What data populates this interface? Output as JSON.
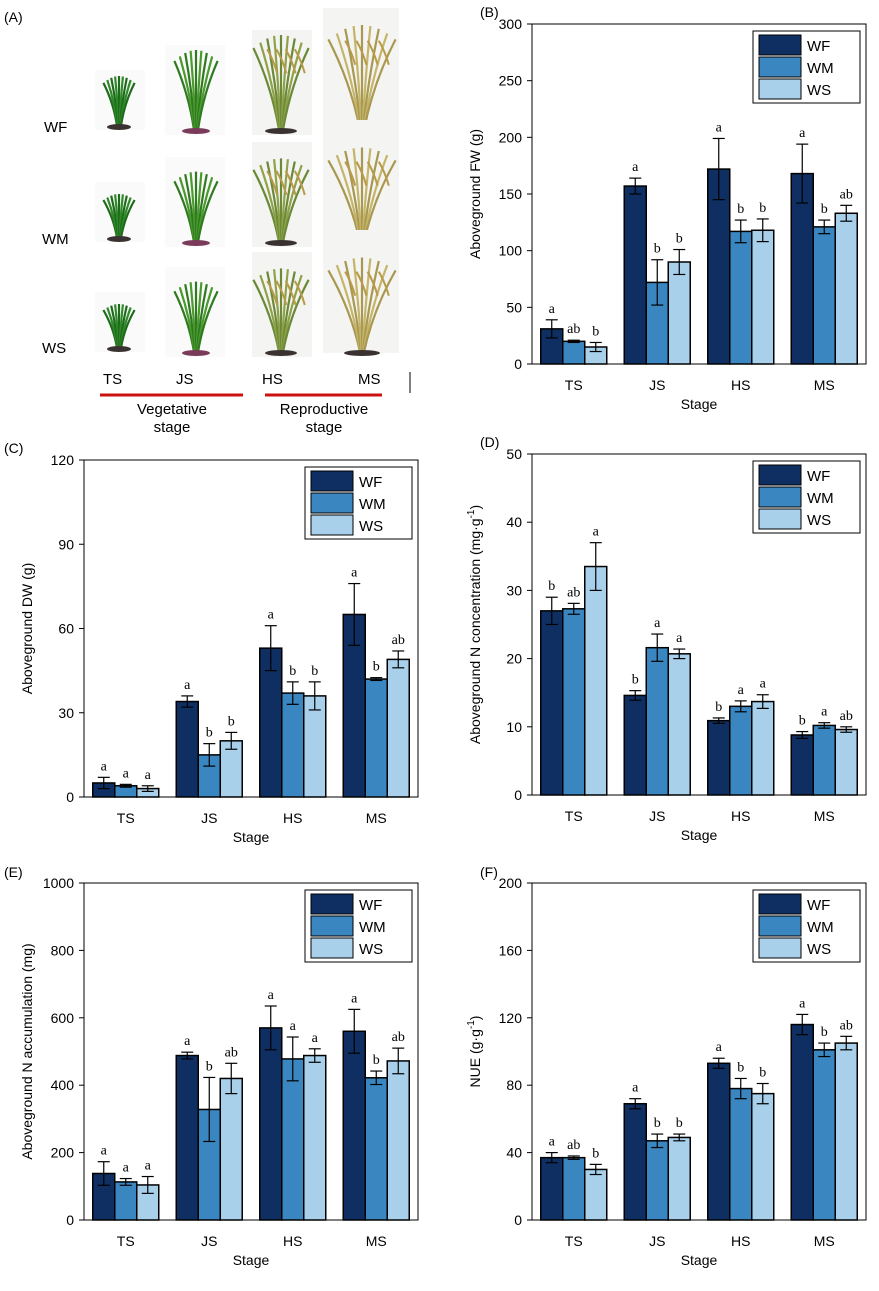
{
  "colors": {
    "WF": "#0f2f63",
    "WM": "#3a86c0",
    "WS": "#a8d0eb",
    "stage_bar": "#cc1111"
  },
  "panel_a": {
    "label": "(A)",
    "rows": [
      "WF",
      "WM",
      "WS"
    ],
    "stages": [
      "TS",
      "JS",
      "HS",
      "MS"
    ],
    "vegetative_label_1": "Vegetative",
    "vegetative_label_2": "stage",
    "reproductive_label_1": "Reproductive",
    "reproductive_label_2": "stage",
    "photo_description": "rice plants at four growth stages"
  },
  "chart_data": [
    {
      "id": "B",
      "label": "(B)",
      "type": "bar",
      "categories": [
        "TS",
        "JS",
        "HS",
        "MS"
      ],
      "series": [
        {
          "name": "WF",
          "values": [
            31,
            157,
            172,
            168
          ],
          "errors": [
            8,
            7,
            27,
            26
          ],
          "sig": [
            "a",
            "a",
            "a",
            "a"
          ]
        },
        {
          "name": "WM",
          "values": [
            20,
            72,
            117,
            121
          ],
          "errors": [
            1,
            20,
            10,
            6
          ],
          "sig": [
            "ab",
            "b",
            "b",
            "b"
          ]
        },
        {
          "name": "WS",
          "values": [
            15,
            90,
            118,
            133
          ],
          "errors": [
            4,
            11,
            10,
            7
          ],
          "sig": [
            "b",
            "b",
            "b",
            "ab"
          ]
        }
      ],
      "xlabel": "Stage",
      "ylabel": "Aboveground FW (g)",
      "ylim": [
        0,
        300
      ],
      "yticks": [
        "0",
        "50",
        "100",
        "150",
        "200",
        "250",
        "300"
      ]
    },
    {
      "id": "C",
      "label": "(C)",
      "type": "bar",
      "categories": [
        "TS",
        "JS",
        "HS",
        "MS"
      ],
      "series": [
        {
          "name": "WF",
          "values": [
            5,
            34,
            53,
            65
          ],
          "errors": [
            2,
            2,
            8,
            11
          ],
          "sig": [
            "a",
            "a",
            "a",
            "a"
          ]
        },
        {
          "name": "WM",
          "values": [
            4,
            15,
            37,
            42
          ],
          "errors": [
            0.5,
            4,
            4,
            0.5
          ],
          "sig": [
            "a",
            "b",
            "b",
            "b"
          ]
        },
        {
          "name": "WS",
          "values": [
            3,
            20,
            36,
            49
          ],
          "errors": [
            1,
            3,
            5,
            3
          ],
          "sig": [
            "a",
            "b",
            "b",
            "ab"
          ]
        }
      ],
      "xlabel": "Stage",
      "ylabel": "Aboveground DW (g)",
      "ylim": [
        0,
        120
      ],
      "yticks": [
        "0",
        "30",
        "60",
        "90",
        "120"
      ]
    },
    {
      "id": "D",
      "label": "(D)",
      "type": "bar",
      "categories": [
        "TS",
        "JS",
        "HS",
        "MS"
      ],
      "series": [
        {
          "name": "WF",
          "values": [
            27,
            14.6,
            10.9,
            8.8
          ],
          "errors": [
            2,
            0.7,
            0.4,
            0.5
          ],
          "sig": [
            "b",
            "b",
            "b",
            "b"
          ]
        },
        {
          "name": "WM",
          "values": [
            27.3,
            21.6,
            13,
            10.2
          ],
          "errors": [
            0.8,
            2,
            0.8,
            0.4
          ],
          "sig": [
            "ab",
            "a",
            "a",
            "a"
          ]
        },
        {
          "name": "WS",
          "values": [
            33.5,
            20.7,
            13.7,
            9.6
          ],
          "errors": [
            3.5,
            0.7,
            1,
            0.4
          ],
          "sig": [
            "a",
            "a",
            "a",
            "ab"
          ]
        }
      ],
      "xlabel": "Stage",
      "ylabel": "Aboveground N concentration (mg·g",
      "ylabel_sup": "-1",
      "ylabel_end": ")",
      "ylim": [
        0,
        50
      ],
      "yticks": [
        "0",
        "10",
        "20",
        "30",
        "40",
        "50"
      ]
    },
    {
      "id": "E",
      "label": "(E)",
      "type": "bar",
      "categories": [
        "TS",
        "JS",
        "HS",
        "MS"
      ],
      "series": [
        {
          "name": "WF",
          "values": [
            138,
            488,
            570,
            560
          ],
          "errors": [
            35,
            10,
            65,
            65
          ],
          "sig": [
            "a",
            "a",
            "a",
            "a"
          ]
        },
        {
          "name": "WM",
          "values": [
            113,
            328,
            478,
            422
          ],
          "errors": [
            10,
            95,
            65,
            20
          ],
          "sig": [
            "a",
            "b",
            "a",
            "b"
          ]
        },
        {
          "name": "WS",
          "values": [
            104,
            420,
            488,
            472
          ],
          "errors": [
            25,
            45,
            20,
            38
          ],
          "sig": [
            "a",
            "ab",
            "a",
            "ab"
          ]
        }
      ],
      "xlabel": "Stage",
      "ylabel": "Aboveground N accumulation (mg)",
      "ylim": [
        0,
        1000
      ],
      "yticks": [
        "0",
        "200",
        "400",
        "600",
        "800",
        "1000"
      ]
    },
    {
      "id": "F",
      "label": "(F)",
      "type": "bar",
      "categories": [
        "TS",
        "JS",
        "HS",
        "MS"
      ],
      "series": [
        {
          "name": "WF",
          "values": [
            37,
            69,
            93,
            116
          ],
          "errors": [
            3,
            3,
            3,
            6
          ],
          "sig": [
            "a",
            "a",
            "a",
            "a"
          ]
        },
        {
          "name": "WM",
          "values": [
            37,
            47,
            78,
            101
          ],
          "errors": [
            1,
            4,
            6,
            4
          ],
          "sig": [
            "ab",
            "b",
            "b",
            "b"
          ]
        },
        {
          "name": "WS",
          "values": [
            30,
            49,
            75,
            105
          ],
          "errors": [
            3,
            2,
            6,
            4
          ],
          "sig": [
            "b",
            "b",
            "b",
            "ab"
          ]
        }
      ],
      "xlabel": "Stage",
      "ylabel": "NUE (g·g",
      "ylabel_sup": "-1",
      "ylabel_end": ")",
      "ylim": [
        0,
        200
      ],
      "yticks": [
        "0",
        "40",
        "80",
        "120",
        "160",
        "200"
      ]
    }
  ]
}
